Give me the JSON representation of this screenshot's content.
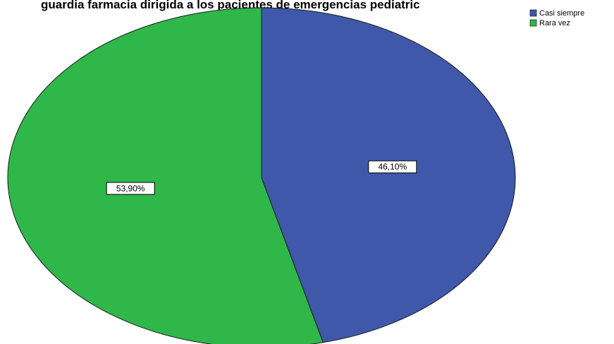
{
  "chart_data": {
    "type": "pie",
    "title": "guardia farmacia dirigida a los pacientes de emergencias pediatric",
    "categories": [
      "Casi siempre",
      "Rara vez"
    ],
    "values": [
      46.1,
      53.9
    ],
    "labels": [
      "46,10%",
      "53,90%"
    ],
    "colors": [
      "#3f58aa",
      "#2fb74a"
    ],
    "legend_position": "top-right",
    "start_angle_deg": 0,
    "direction": "clockwise"
  }
}
